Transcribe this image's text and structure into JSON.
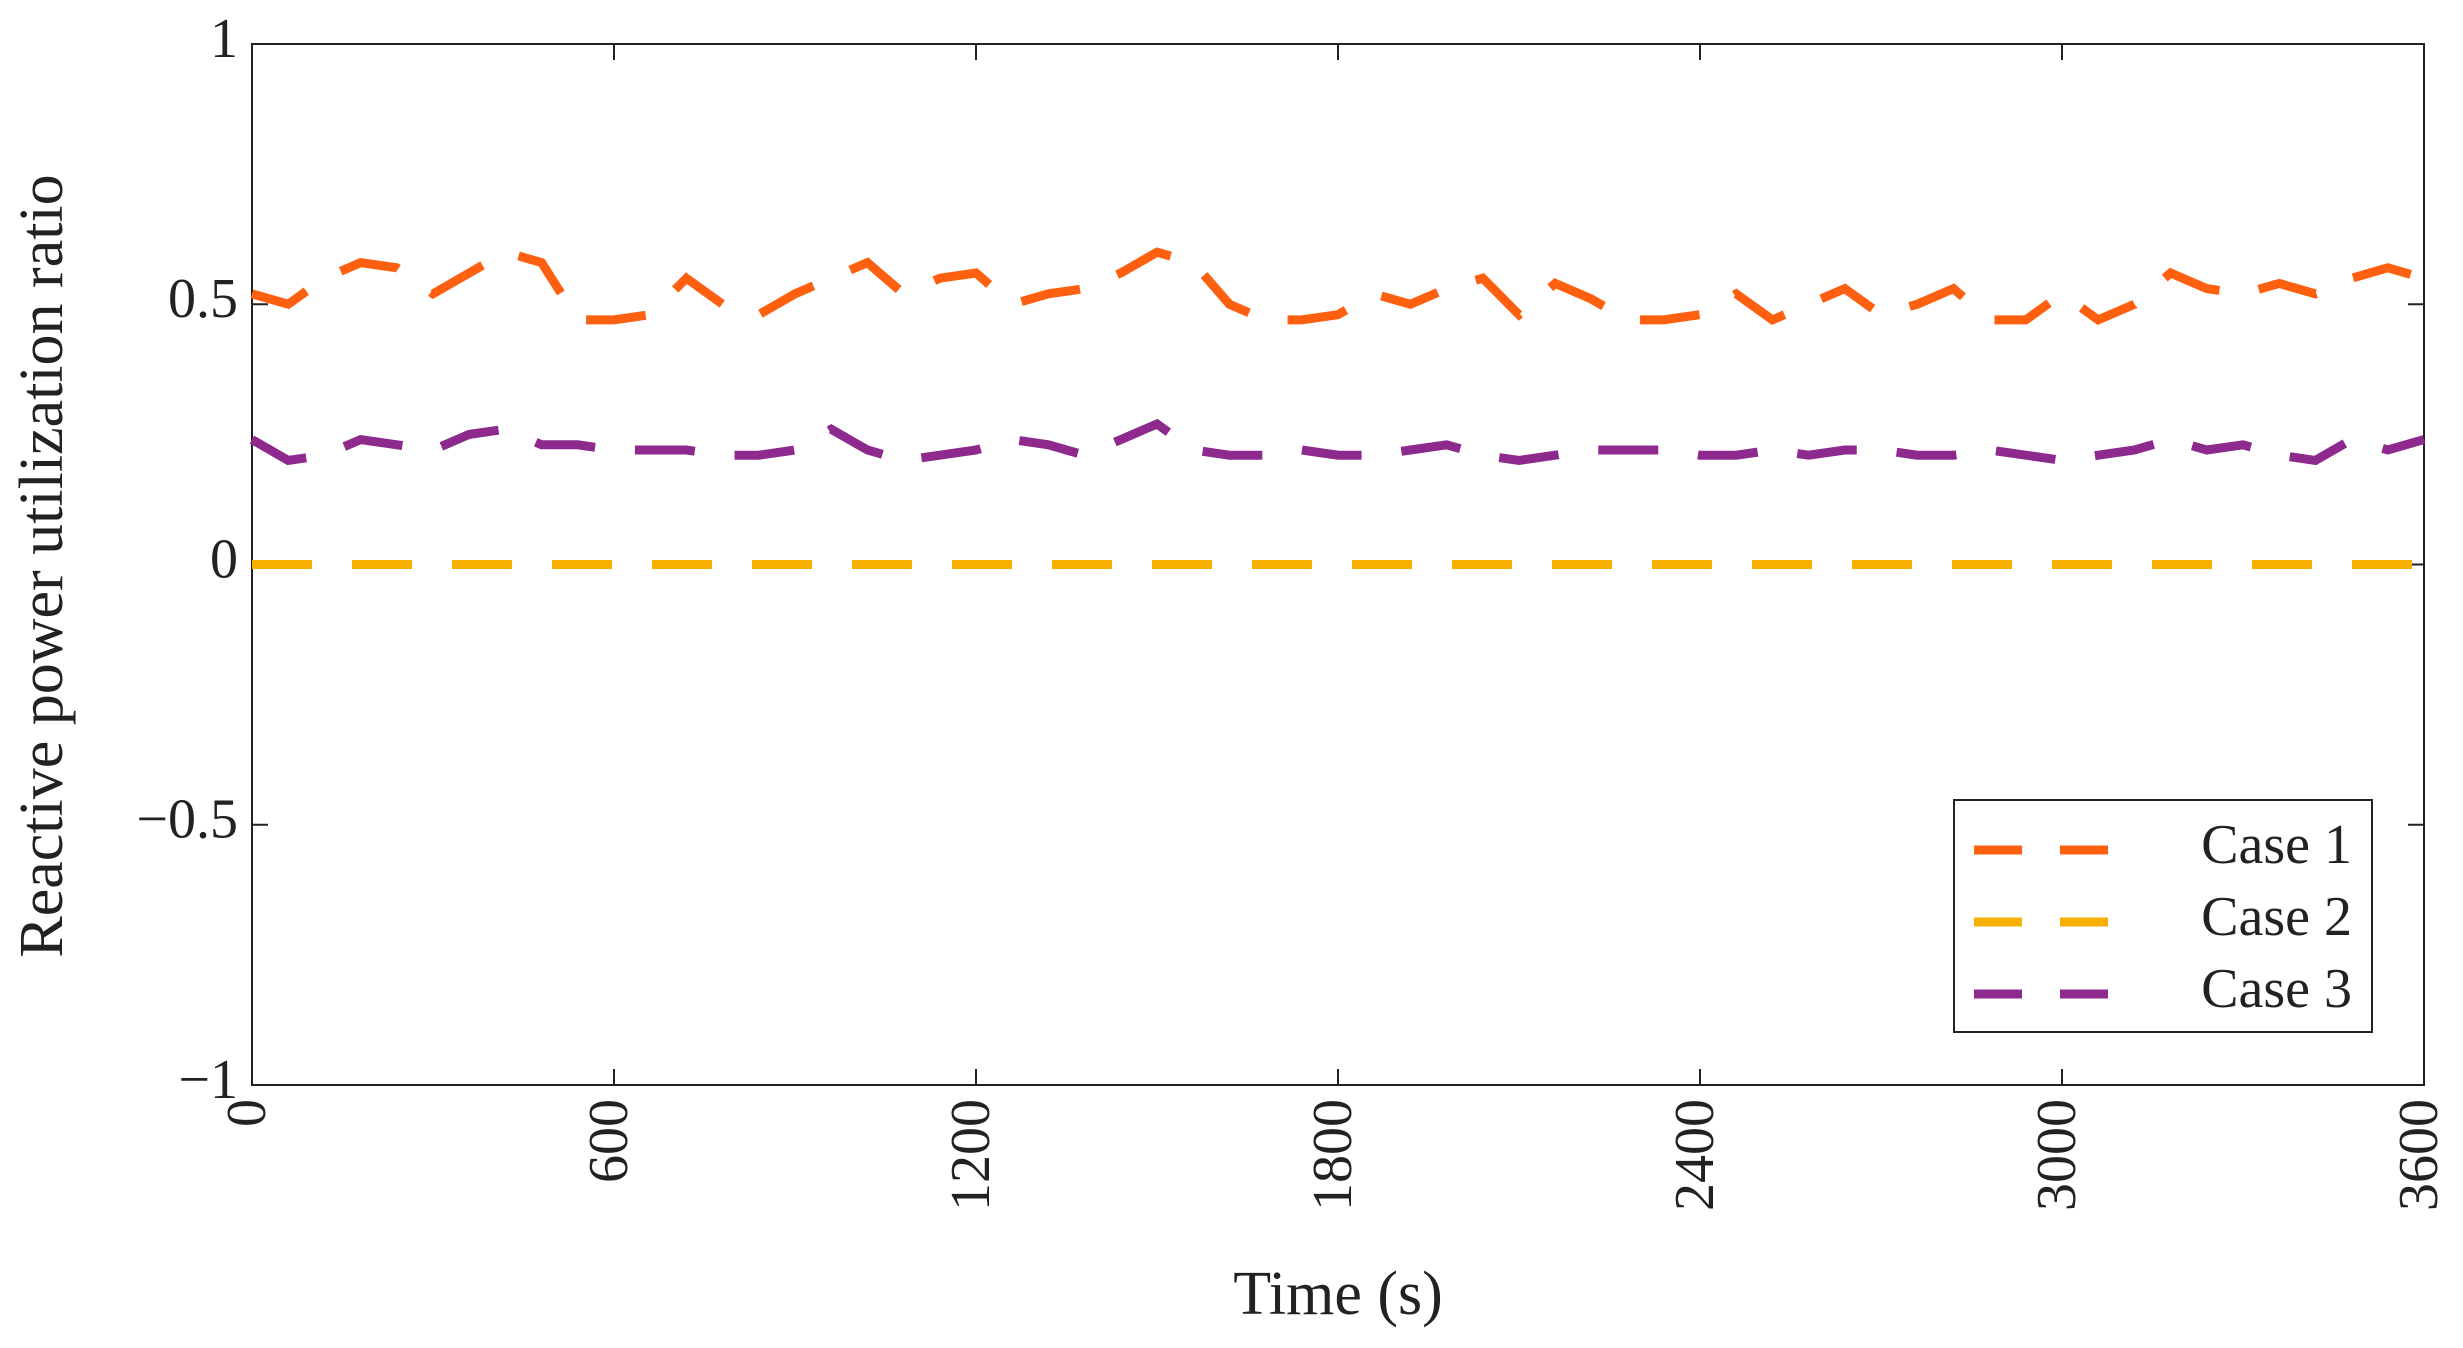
{
  "chart_data": {
    "type": "line",
    "xlabel": "Time (s)",
    "ylabel": "Reactive power utilization ratio",
    "x": [
      0,
      60,
      120,
      180,
      240,
      300,
      360,
      420,
      480,
      540,
      600,
      660,
      720,
      780,
      840,
      900,
      960,
      1020,
      1080,
      1140,
      1200,
      1260,
      1320,
      1380,
      1440,
      1500,
      1560,
      1620,
      1680,
      1740,
      1800,
      1860,
      1920,
      1980,
      2040,
      2100,
      2160,
      2220,
      2280,
      2340,
      2400,
      2460,
      2520,
      2580,
      2640,
      2700,
      2760,
      2820,
      2880,
      2940,
      3000,
      3060,
      3120,
      3180,
      3240,
      3300,
      3360,
      3420,
      3480,
      3540,
      3600
    ],
    "series": [
      {
        "name": "Case 1",
        "color": "#ff6010",
        "values": [
          0.52,
          0.5,
          0.55,
          0.58,
          0.57,
          0.52,
          0.56,
          0.6,
          0.58,
          0.47,
          0.47,
          0.48,
          0.55,
          0.5,
          0.48,
          0.52,
          0.55,
          0.58,
          0.52,
          0.55,
          0.56,
          0.5,
          0.52,
          0.53,
          0.56,
          0.6,
          0.58,
          0.5,
          0.47,
          0.47,
          0.48,
          0.52,
          0.5,
          0.53,
          0.55,
          0.48,
          0.54,
          0.51,
          0.47,
          0.47,
          0.48,
          0.52,
          0.47,
          0.5,
          0.53,
          0.48,
          0.5,
          0.53,
          0.47,
          0.47,
          0.52,
          0.47,
          0.5,
          0.56,
          0.53,
          0.52,
          0.54,
          0.52,
          0.55,
          0.57,
          0.55
        ]
      },
      {
        "name": "Case 2",
        "color": "#f7b000",
        "values": [
          0,
          0,
          0,
          0,
          0,
          0,
          0,
          0,
          0,
          0,
          0,
          0,
          0,
          0,
          0,
          0,
          0,
          0,
          0,
          0,
          0,
          0,
          0,
          0,
          0,
          0,
          0,
          0,
          0,
          0,
          0,
          0,
          0,
          0,
          0,
          0,
          0,
          0,
          0,
          0,
          0,
          0,
          0,
          0,
          0,
          0,
          0,
          0,
          0,
          0,
          0,
          0,
          0,
          0,
          0,
          0,
          0,
          0,
          0,
          0,
          0
        ]
      },
      {
        "name": "Case 3",
        "color": "#8e2a8e",
        "values": [
          0.24,
          0.2,
          0.21,
          0.24,
          0.23,
          0.22,
          0.25,
          0.26,
          0.23,
          0.23,
          0.22,
          0.22,
          0.22,
          0.21,
          0.21,
          0.22,
          0.26,
          0.22,
          0.2,
          0.21,
          0.22,
          0.24,
          0.23,
          0.21,
          0.24,
          0.27,
          0.22,
          0.21,
          0.21,
          0.22,
          0.21,
          0.21,
          0.22,
          0.23,
          0.21,
          0.2,
          0.21,
          0.22,
          0.22,
          0.22,
          0.21,
          0.21,
          0.22,
          0.21,
          0.22,
          0.22,
          0.21,
          0.21,
          0.22,
          0.21,
          0.2,
          0.21,
          0.22,
          0.24,
          0.22,
          0.23,
          0.21,
          0.2,
          0.24,
          0.22,
          0.24
        ]
      }
    ],
    "xlim": [
      0,
      3600
    ],
    "xticks": [
      0,
      600,
      1200,
      1800,
      2400,
      3000,
      3600
    ],
    "ylim": [
      -1,
      1
    ],
    "yticks": [
      {
        "value": -1,
        "label": "−1"
      },
      {
        "value": -0.5,
        "label": "−0.5"
      },
      0,
      0.5,
      1
    ],
    "legend": "lower right"
  }
}
